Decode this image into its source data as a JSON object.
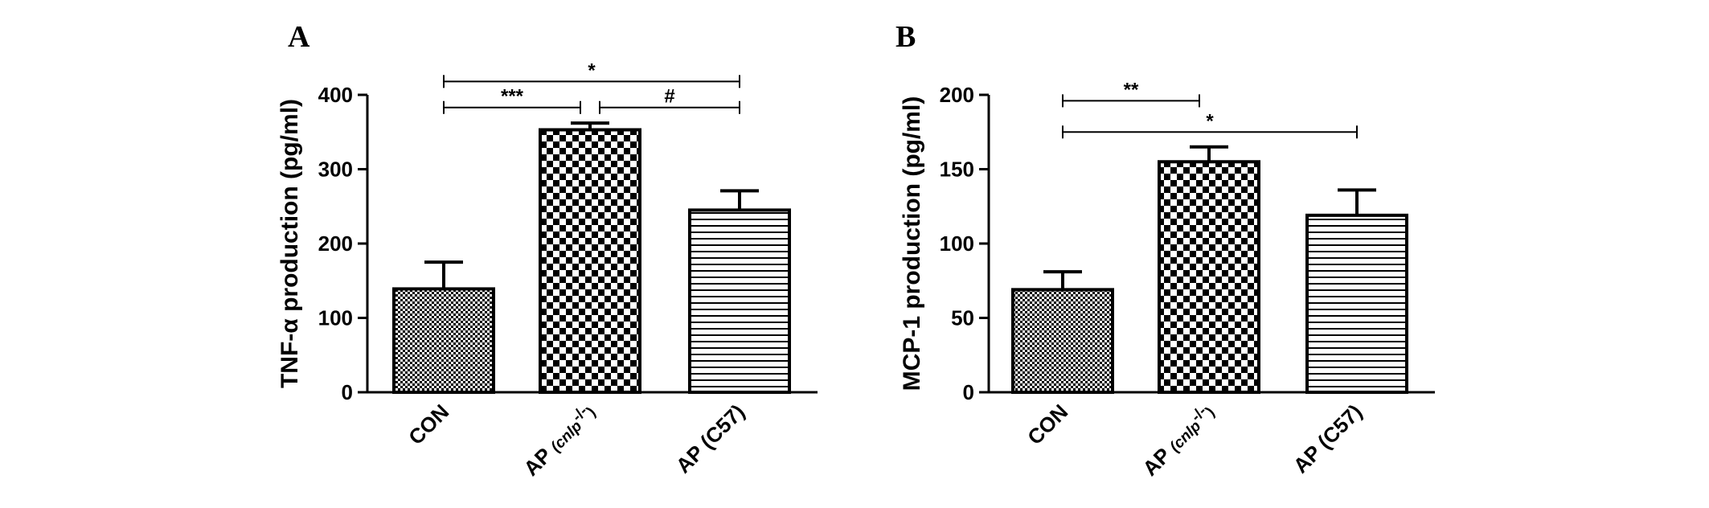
{
  "chart_data": [
    {
      "panel_label": "A",
      "type": "bar",
      "ylabel": "TNF-α production (pg/ml)",
      "ylim": [
        0,
        400
      ],
      "yticks": [
        "0",
        "100",
        "200",
        "300",
        "400"
      ],
      "categories": [
        {
          "main": "CON",
          "paren": ""
        },
        {
          "main": "AP ",
          "paren": "(cnlp",
          "sup": "-/-",
          "close": ")"
        },
        {
          "main": "AP (C57)",
          "paren": ""
        }
      ],
      "values": [
        139,
        353,
        245
      ],
      "errors": [
        36,
        9,
        26
      ],
      "patterns": [
        "fine-check",
        "coarse-check",
        "hlines"
      ],
      "comparisons": [
        {
          "from": 0,
          "to": 2,
          "label": "*",
          "y": 418
        },
        {
          "from": 0,
          "to": 1,
          "label": "***",
          "y": 383
        },
        {
          "from": 1,
          "to": 2,
          "label": "#",
          "y": 383
        }
      ]
    },
    {
      "panel_label": "B",
      "type": "bar",
      "ylabel": "MCP-1 production (pg/ml)",
      "ylim": [
        0,
        200
      ],
      "yticks": [
        "0",
        "50",
        "100",
        "150",
        "200"
      ],
      "categories": [
        {
          "main": "CON",
          "paren": ""
        },
        {
          "main": "AP ",
          "paren": "(cnlp",
          "sup": "-/-",
          "close": ")"
        },
        {
          "main": "AP (C57)",
          "paren": ""
        }
      ],
      "values": [
        69,
        155,
        119
      ],
      "errors": [
        12,
        10,
        17
      ],
      "patterns": [
        "fine-check",
        "coarse-check",
        "hlines"
      ],
      "comparisons": [
        {
          "from": 0,
          "to": 1,
          "label": "**",
          "y": 196
        },
        {
          "from": 0,
          "to": 2,
          "label": "*",
          "y": 175
        }
      ]
    }
  ]
}
